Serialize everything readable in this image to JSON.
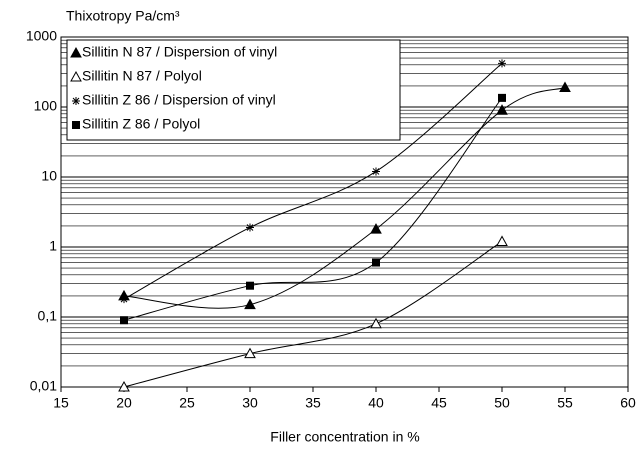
{
  "chart_data": {
    "type": "line",
    "ylabel": "Thixotropy Pa/cm³",
    "xlabel": "Filler concentration in %",
    "xlim": [
      15,
      60
    ],
    "xticks": [
      15,
      20,
      25,
      30,
      35,
      40,
      45,
      50,
      55,
      60
    ],
    "ylim": [
      0.01,
      1000
    ],
    "yticks": [
      {
        "value": 0.01,
        "label": "0,01"
      },
      {
        "value": 0.1,
        "label": "0,1"
      },
      1,
      10,
      100,
      1000
    ],
    "log_y": true,
    "grid": true,
    "minor_grid": true,
    "legend": "upper left",
    "smooth": true,
    "series": [
      {
        "name": "Sillitin N 87 / Dispersion of vinyl",
        "color": "#000000",
        "marker": "triangle",
        "x": [
          20,
          30,
          40,
          50,
          55
        ],
        "values": [
          0.2,
          0.15,
          1.8,
          90,
          190
        ]
      },
      {
        "name": "Sillitin N 87 / Polyol",
        "color": "#000000",
        "marker": "open-triangle",
        "x": [
          20,
          30,
          40,
          50
        ],
        "values": [
          0.01,
          0.03,
          0.08,
          1.2
        ]
      },
      {
        "name": "Sillitin Z 86 / Dispersion of vinyl",
        "color": "#000000",
        "marker": "star",
        "x": [
          20,
          30,
          40,
          50
        ],
        "values": [
          0.18,
          1.9,
          12,
          420
        ]
      },
      {
        "name": "Sillitin Z 86 / Polyol",
        "color": "#000000",
        "marker": "square",
        "x": [
          20,
          30,
          40,
          50
        ],
        "values": [
          0.09,
          0.28,
          0.6,
          135
        ]
      }
    ]
  }
}
